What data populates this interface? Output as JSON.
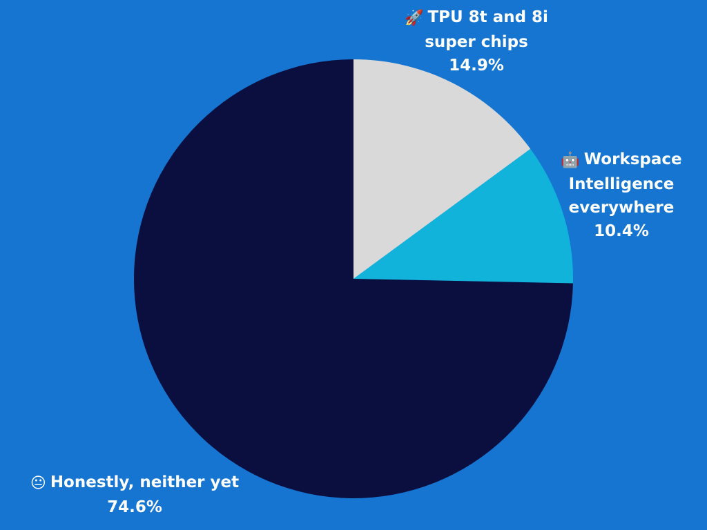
{
  "chart_data": {
    "type": "pie",
    "slices": [
      {
        "icon": "rocket-icon",
        "glyph": "🚀",
        "lines": [
          "TPU 8t and 8i",
          "super chips"
        ],
        "value": 14.9,
        "value_label": "14.9%",
        "color": "#d9d9d9"
      },
      {
        "icon": "robot-icon",
        "glyph": "🤖",
        "lines": [
          "Workspace",
          "Intelligence",
          "everywhere"
        ],
        "value": 10.4,
        "value_label": "10.4%",
        "color": "#12b3da"
      },
      {
        "icon": "neutral-face-icon",
        "glyph": "😐",
        "lines": [
          "Honestly, neither yet"
        ],
        "value": 74.6,
        "value_label": "74.6%",
        "color": "#0a0f3f"
      }
    ]
  },
  "colors": {
    "background": "#1575d1",
    "label_text": "#ffffff"
  }
}
